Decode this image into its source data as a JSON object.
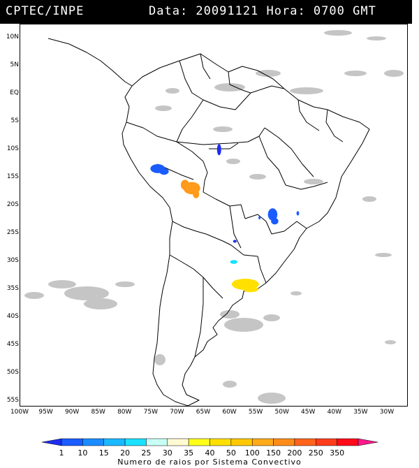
{
  "header": {
    "source": "CPTEC/INPE",
    "date_time": "Data: 20091121 Hora: 0700 GMT"
  },
  "map": {
    "lat_labels": [
      "10N",
      "5N",
      "EQ",
      "5S",
      "10S",
      "15S",
      "20S",
      "25S",
      "30S",
      "35S",
      "40S",
      "45S",
      "50S",
      "55S"
    ],
    "lat_values": [
      10,
      5,
      0,
      -5,
      -10,
      -15,
      -20,
      -25,
      -30,
      -35,
      -40,
      -45,
      -50,
      -55
    ],
    "lon_labels": [
      "100W",
      "95W",
      "90W",
      "85W",
      "80W",
      "75W",
      "70W",
      "65W",
      "60W",
      "55W",
      "50W",
      "45W",
      "40W",
      "35W",
      "30W"
    ],
    "lon_values": [
      -100,
      -95,
      -90,
      -85,
      -80,
      -75,
      -70,
      -65,
      -60,
      -55,
      -50,
      -45,
      -40,
      -35,
      -30
    ],
    "lon_range": [
      -100,
      -26
    ],
    "lat_range": [
      -56,
      12.5
    ],
    "clouds_color": "#bcbcbc",
    "systems": [
      {
        "lon": -73.8,
        "lat": -13.3,
        "color": "#1a5cff",
        "rx": 1.4,
        "ry": 0.8
      },
      {
        "lon": -72.6,
        "lat": -13.8,
        "color": "#1a5cff",
        "rx": 0.9,
        "ry": 0.6
      },
      {
        "lon": -62.1,
        "lat": -9.9,
        "color": "#1e2df0",
        "rx": 0.4,
        "ry": 1.0
      },
      {
        "lon": -67.3,
        "lat": -16.8,
        "color": "#ff9a1a",
        "rx": 1.6,
        "ry": 1.1
      },
      {
        "lon": -68.6,
        "lat": -16.2,
        "color": "#ff9a1a",
        "rx": 0.8,
        "ry": 0.9
      },
      {
        "lon": -66.5,
        "lat": -17.9,
        "color": "#ff9a1a",
        "rx": 0.6,
        "ry": 0.7
      },
      {
        "lon": -51.9,
        "lat": -21.5,
        "color": "#1a5cff",
        "rx": 0.9,
        "ry": 1.1
      },
      {
        "lon": -51.5,
        "lat": -22.7,
        "color": "#1a5cff",
        "rx": 0.7,
        "ry": 0.6
      },
      {
        "lon": -54.4,
        "lat": -22.1,
        "color": "#1a5cff",
        "rx": 0.2,
        "ry": 0.3
      },
      {
        "lon": -47.1,
        "lat": -21.3,
        "color": "#1a5cff",
        "rx": 0.25,
        "ry": 0.4
      },
      {
        "lon": -59.1,
        "lat": -26.3,
        "color": "#1e2df0",
        "rx": 0.35,
        "ry": 0.25
      },
      {
        "lon": -59.3,
        "lat": -30.0,
        "color": "#1ae1ff",
        "rx": 0.7,
        "ry": 0.35
      },
      {
        "lon": -57.1,
        "lat": -34.0,
        "color": "#ffe000",
        "rx": 2.6,
        "ry": 1.0
      },
      {
        "lon": -58.6,
        "lat": -33.8,
        "color": "#ffe000",
        "rx": 0.9,
        "ry": 0.6
      },
      {
        "lon": -56.1,
        "lat": -34.9,
        "color": "#ffe000",
        "rx": 1.5,
        "ry": 0.5
      }
    ]
  },
  "colorbar": {
    "colors": [
      "#1e2df0",
      "#1a5cff",
      "#1a8cff",
      "#1ab8ff",
      "#1ae1ff",
      "#c8fff5",
      "#fffad2",
      "#ffff1a",
      "#ffe000",
      "#ffc800",
      "#ffaa1a",
      "#ff8c1a",
      "#ff641a",
      "#ff3c1a",
      "#ff0a1a",
      "#ff1a8c"
    ],
    "labels": [
      "1",
      "10",
      "15",
      "20",
      "25",
      "30",
      "35",
      "40",
      "50",
      "100",
      "150",
      "200",
      "250",
      "350"
    ],
    "caption": "Numero de raios por Sistema Convectivo"
  }
}
